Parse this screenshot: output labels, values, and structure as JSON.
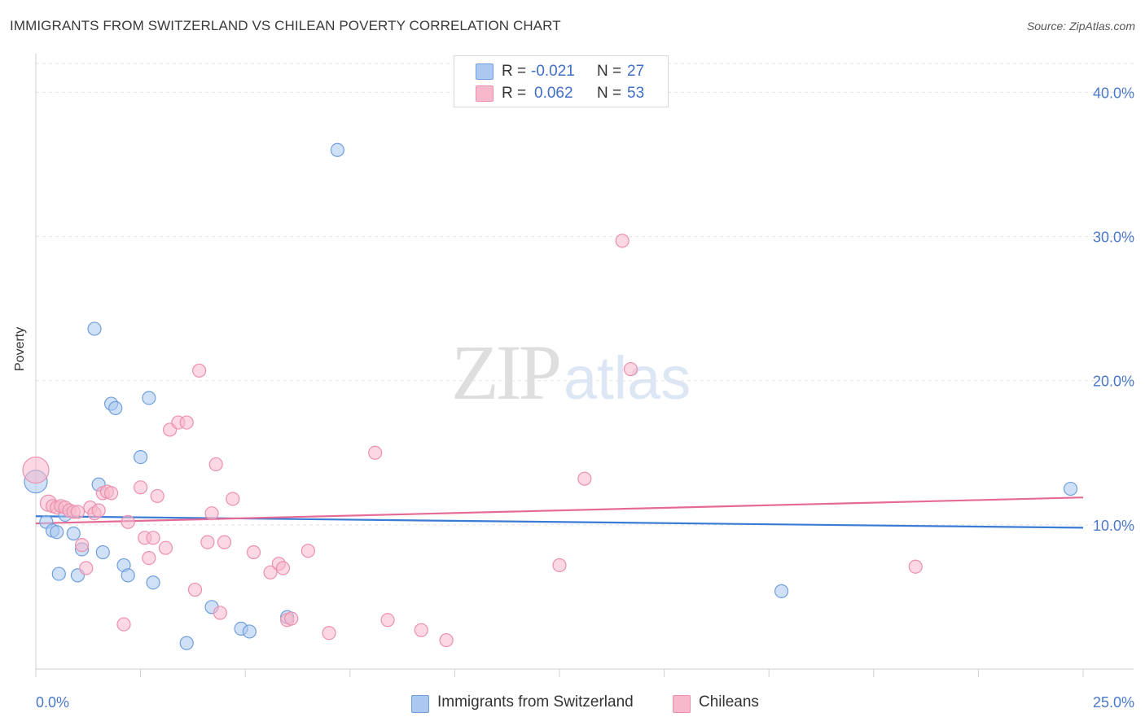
{
  "title": "IMMIGRANTS FROM SWITZERLAND VS CHILEAN POVERTY CORRELATION CHART",
  "source": "Source: ZipAtlas.com",
  "watermark": {
    "zip": "ZIP",
    "atlas": "atlas"
  },
  "stats": [
    {
      "r_label": "R =",
      "r_value": "-0.021",
      "n_label": "N =",
      "n_value": "27",
      "color": "#aac8f0"
    },
    {
      "r_label": "R =",
      "r_value": "0.062",
      "n_label": "N =",
      "n_value": "53",
      "color": "#f7b8cc"
    }
  ],
  "legend": [
    {
      "label": "Immigrants from Switzerland",
      "color": "#aac8f0"
    },
    {
      "label": "Chileans",
      "color": "#f7b8cc"
    }
  ],
  "colors": {
    "blue_line": "#3a7bd5",
    "pink_line": "#e56a96",
    "blue_fill": "#aac8f0",
    "pink_fill": "#f7b8cc",
    "blue_stroke": "#6f9fdc",
    "pink_stroke": "#ec90ad",
    "tick_text": "#4a78c8"
  },
  "chart_data": {
    "type": "scatter",
    "title": "IMMIGRANTS FROM SWITZERLAND VS CHILEAN POVERTY CORRELATION CHART",
    "xlabel": "",
    "ylabel": "Poverty",
    "xlim": [
      0,
      25
    ],
    "ylim": [
      0,
      42
    ],
    "x_tick_labels": [
      "0.0%",
      "25.0%"
    ],
    "y_ticks": [
      10,
      20,
      30,
      40
    ],
    "y_tick_labels": [
      "10.0%",
      "20.0%",
      "30.0%",
      "40.0%"
    ],
    "grid": true,
    "series": [
      {
        "name": "Immigrants from Switzerland",
        "x": [
          0.0,
          0.25,
          0.4,
          0.5,
          0.55,
          0.7,
          0.9,
          1.0,
          1.1,
          1.4,
          1.5,
          1.6,
          1.8,
          1.9,
          2.1,
          2.2,
          2.5,
          2.7,
          2.8,
          3.6,
          4.2,
          4.9,
          5.1,
          6.0,
          7.2,
          17.8,
          24.7
        ],
        "y": [
          13.0,
          10.2,
          9.6,
          9.5,
          6.6,
          10.7,
          9.4,
          6.5,
          8.3,
          23.6,
          12.8,
          8.1,
          18.4,
          18.1,
          7.2,
          6.5,
          14.7,
          18.8,
          6.0,
          1.8,
          4.3,
          2.8,
          2.6,
          3.6,
          36.0,
          5.4,
          12.5
        ],
        "sizes": [
          14,
          8,
          8,
          8,
          8,
          8,
          8,
          8,
          8,
          8,
          8,
          8,
          8,
          8,
          8,
          8,
          8,
          8,
          8,
          8,
          8,
          8,
          8,
          8,
          8,
          8,
          8
        ]
      },
      {
        "name": "Chileans",
        "x": [
          0.0,
          0.3,
          0.4,
          0.5,
          0.6,
          0.7,
          0.8,
          0.9,
          1.0,
          1.1,
          1.2,
          1.3,
          1.4,
          1.5,
          1.6,
          1.7,
          1.8,
          2.1,
          2.2,
          2.5,
          2.6,
          2.7,
          2.8,
          2.9,
          3.1,
          3.2,
          3.4,
          3.6,
          3.8,
          3.9,
          4.1,
          4.2,
          4.3,
          4.4,
          4.5,
          4.7,
          5.2,
          5.6,
          5.8,
          6.0,
          6.1,
          6.5,
          7.0,
          8.1,
          8.4,
          9.2,
          9.8,
          12.5,
          13.1,
          14.0,
          14.2,
          21.0,
          5.9
        ],
        "y": [
          13.8,
          11.5,
          11.3,
          11.2,
          11.3,
          11.2,
          11.0,
          10.9,
          10.9,
          8.6,
          7.0,
          11.2,
          10.8,
          11.0,
          12.2,
          12.3,
          12.2,
          3.1,
          10.2,
          12.6,
          9.1,
          7.7,
          9.1,
          12.0,
          8.4,
          16.6,
          17.1,
          17.1,
          5.5,
          20.7,
          8.8,
          10.8,
          14.2,
          3.9,
          8.8,
          11.8,
          8.1,
          6.7,
          7.3,
          3.4,
          3.5,
          8.2,
          2.5,
          15.0,
          3.4,
          2.7,
          2.0,
          7.2,
          13.2,
          29.7,
          20.8,
          7.1,
          7.0
        ],
        "sizes": [
          16,
          10,
          8,
          8,
          8,
          8,
          8,
          8,
          8,
          8,
          8,
          8,
          8,
          8,
          8,
          8,
          8,
          8,
          8,
          8,
          8,
          8,
          8,
          8,
          8,
          8,
          8,
          8,
          8,
          8,
          8,
          8,
          8,
          8,
          8,
          8,
          8,
          8,
          8,
          8,
          8,
          8,
          8,
          8,
          8,
          8,
          8,
          8,
          8,
          8,
          8,
          8,
          8
        ]
      }
    ],
    "trend_lines": [
      {
        "name": "Immigrants from Switzerland",
        "x": [
          0,
          25
        ],
        "y": [
          10.6,
          9.8
        ]
      },
      {
        "name": "Chileans",
        "x": [
          0,
          25
        ],
        "y": [
          10.1,
          11.9
        ]
      }
    ]
  }
}
